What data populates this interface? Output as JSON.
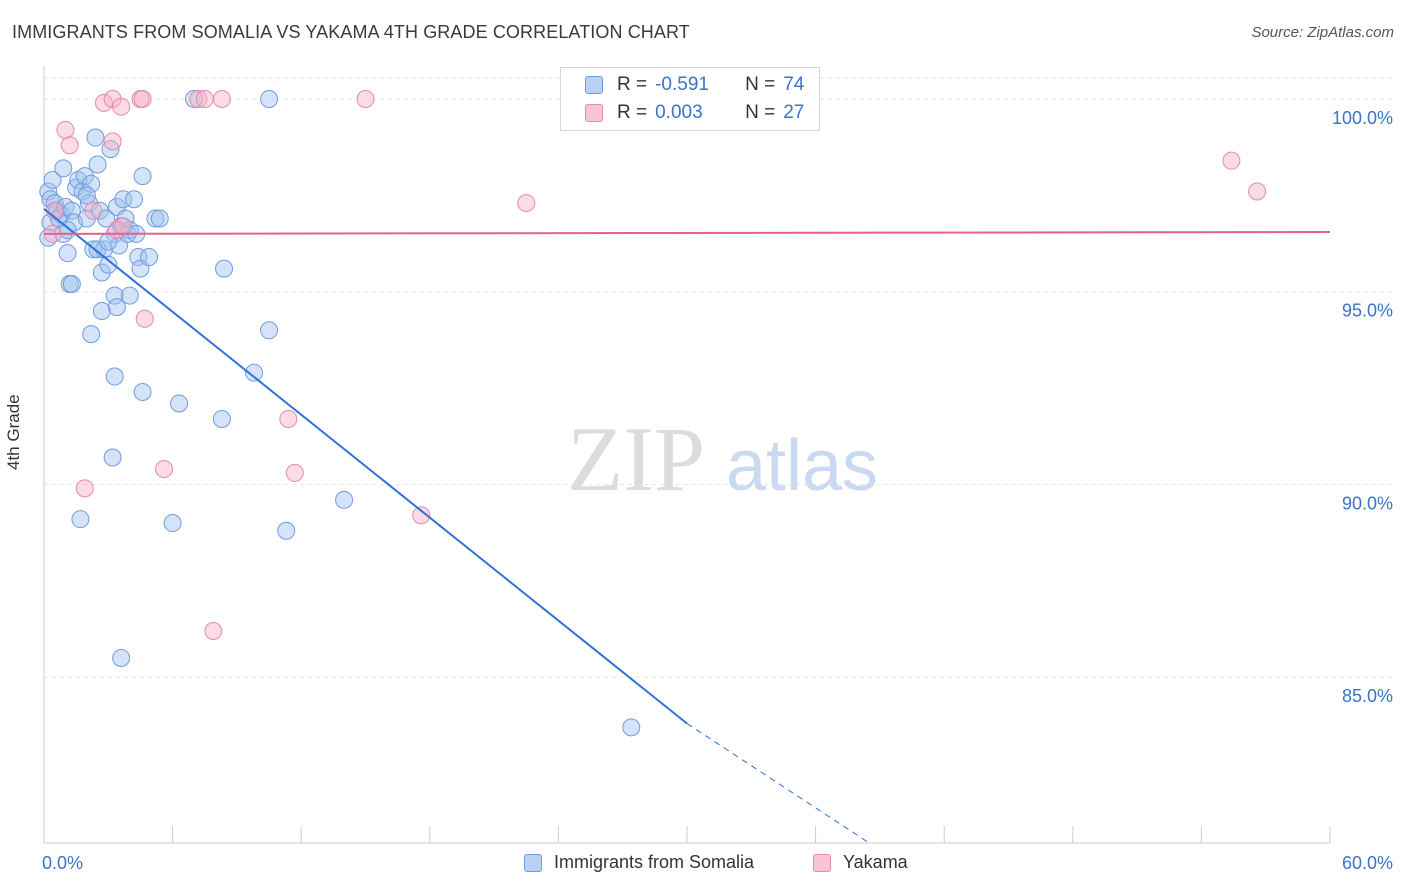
{
  "title": "IMMIGRANTS FROM SOMALIA VS YAKAMA 4TH GRADE CORRELATION CHART",
  "source": "Source: ZipAtlas.com",
  "watermark": {
    "zip": "ZIP",
    "atlas": "atlas"
  },
  "legend": {
    "rows": [
      {
        "r_label": "R =",
        "r_value": "-0.591",
        "n_label": "N =",
        "n_value": "74",
        "color": "#5b93db"
      },
      {
        "r_label": "R =",
        "r_value": "0.003",
        "n_label": "N =",
        "n_value": "27",
        "color": "#e77fa1"
      }
    ]
  },
  "bottom_legend": [
    {
      "label": "Immigrants from Somalia",
      "color": "#5b93db"
    },
    {
      "label": "Yakama",
      "color": "#e77fa1"
    }
  ],
  "chart_data": {
    "type": "scatter",
    "title": "IMMIGRANTS FROM SOMALIA VS YAKAMA 4TH GRADE CORRELATION CHART",
    "xlabel": "",
    "ylabel": "4th Grade",
    "xlim": [
      0,
      60
    ],
    "ylim": [
      80.7,
      100.7
    ],
    "x_tick_labels": [
      "0.0%",
      "60.0%"
    ],
    "x_ticks": [
      0,
      6,
      12,
      18,
      24,
      30,
      36,
      42,
      48,
      54,
      60
    ],
    "y_ticks": [
      85,
      90,
      95,
      100
    ],
    "y_tick_labels": [
      "85.0%",
      "90.0%",
      "95.0%",
      "100.0%"
    ],
    "grid": true,
    "series": [
      {
        "name": "Immigrants from Somalia",
        "color": "#5b93db",
        "points": [
          [
            0.2,
            97.6
          ],
          [
            0.3,
            97.4
          ],
          [
            0.4,
            97.9
          ],
          [
            0.5,
            97.3
          ],
          [
            0.3,
            96.8
          ],
          [
            0.6,
            97.1
          ],
          [
            0.2,
            96.4
          ],
          [
            0.8,
            97.0
          ],
          [
            0.9,
            96.5
          ],
          [
            0.7,
            96.9
          ],
          [
            1.0,
            97.2
          ],
          [
            1.1,
            96.0
          ],
          [
            0.9,
            98.2
          ],
          [
            1.3,
            97.1
          ],
          [
            1.5,
            97.7
          ],
          [
            1.6,
            97.9
          ],
          [
            1.4,
            96.8
          ],
          [
            1.8,
            97.6
          ],
          [
            1.9,
            98.0
          ],
          [
            2.0,
            96.9
          ],
          [
            2.1,
            97.3
          ],
          [
            2.2,
            97.8
          ],
          [
            2.3,
            96.1
          ],
          [
            2.4,
            99.0
          ],
          [
            2.5,
            98.3
          ],
          [
            2.6,
            97.1
          ],
          [
            2.7,
            95.5
          ],
          [
            2.8,
            96.1
          ],
          [
            2.9,
            96.9
          ],
          [
            3.0,
            95.7
          ],
          [
            3.1,
            98.7
          ],
          [
            3.3,
            96.5
          ],
          [
            3.4,
            97.2
          ],
          [
            3.5,
            96.2
          ],
          [
            3.6,
            96.7
          ],
          [
            3.7,
            97.4
          ],
          [
            3.8,
            96.9
          ],
          [
            3.9,
            96.5
          ],
          [
            4.0,
            96.6
          ],
          [
            4.2,
            97.4
          ],
          [
            4.3,
            96.5
          ],
          [
            4.4,
            95.9
          ],
          [
            4.5,
            95.6
          ],
          [
            4.6,
            98.0
          ],
          [
            4.9,
            95.9
          ],
          [
            5.2,
            96.9
          ],
          [
            5.4,
            96.9
          ],
          [
            1.2,
            95.2
          ],
          [
            1.3,
            95.2
          ],
          [
            2.7,
            94.5
          ],
          [
            3.3,
            94.9
          ],
          [
            3.4,
            94.6
          ],
          [
            4.0,
            94.9
          ],
          [
            2.2,
            93.9
          ],
          [
            3.3,
            92.8
          ],
          [
            4.6,
            92.4
          ],
          [
            6.3,
            92.1
          ],
          [
            8.3,
            91.7
          ],
          [
            3.2,
            90.7
          ],
          [
            1.7,
            89.1
          ],
          [
            6.0,
            89.0
          ],
          [
            3.6,
            85.5
          ],
          [
            7.0,
            100.0
          ],
          [
            10.5,
            100.0
          ],
          [
            8.4,
            95.6
          ],
          [
            10.5,
            94.0
          ],
          [
            9.8,
            92.9
          ],
          [
            11.3,
            88.8
          ],
          [
            14.0,
            89.6
          ],
          [
            27.4,
            83.7
          ],
          [
            2.5,
            96.1
          ],
          [
            3.0,
            96.3
          ],
          [
            1.1,
            96.6
          ],
          [
            2.0,
            97.5
          ]
        ]
      },
      {
        "name": "Yakama",
        "color": "#e77fa1",
        "points": [
          [
            0.4,
            96.5
          ],
          [
            0.5,
            97.1
          ],
          [
            1.0,
            99.2
          ],
          [
            1.2,
            98.8
          ],
          [
            2.3,
            97.1
          ],
          [
            2.8,
            99.9
          ],
          [
            3.2,
            100.0
          ],
          [
            3.2,
            98.9
          ],
          [
            3.6,
            99.8
          ],
          [
            3.4,
            96.6
          ],
          [
            3.7,
            96.7
          ],
          [
            4.5,
            100.0
          ],
          [
            4.6,
            100.0
          ],
          [
            7.2,
            100.0
          ],
          [
            7.5,
            100.0
          ],
          [
            8.3,
            100.0
          ],
          [
            15.0,
            100.0
          ],
          [
            4.7,
            94.3
          ],
          [
            11.4,
            91.7
          ],
          [
            5.6,
            90.4
          ],
          [
            11.7,
            90.3
          ],
          [
            1.9,
            89.9
          ],
          [
            17.6,
            89.2
          ],
          [
            7.9,
            86.2
          ],
          [
            22.5,
            97.3
          ],
          [
            55.4,
            98.4
          ],
          [
            56.6,
            97.6
          ]
        ]
      }
    ],
    "trend_lines": [
      {
        "series": "Immigrants from Somalia",
        "x0": 0,
        "y0": 97.15,
        "x1": 30,
        "y1": 83.8,
        "dashed_to_x": 38.5,
        "dashed_to_y": 80.7
      },
      {
        "series": "Yakama",
        "x0": 0,
        "y0": 96.5,
        "x1": 60,
        "y1": 96.55
      }
    ]
  }
}
